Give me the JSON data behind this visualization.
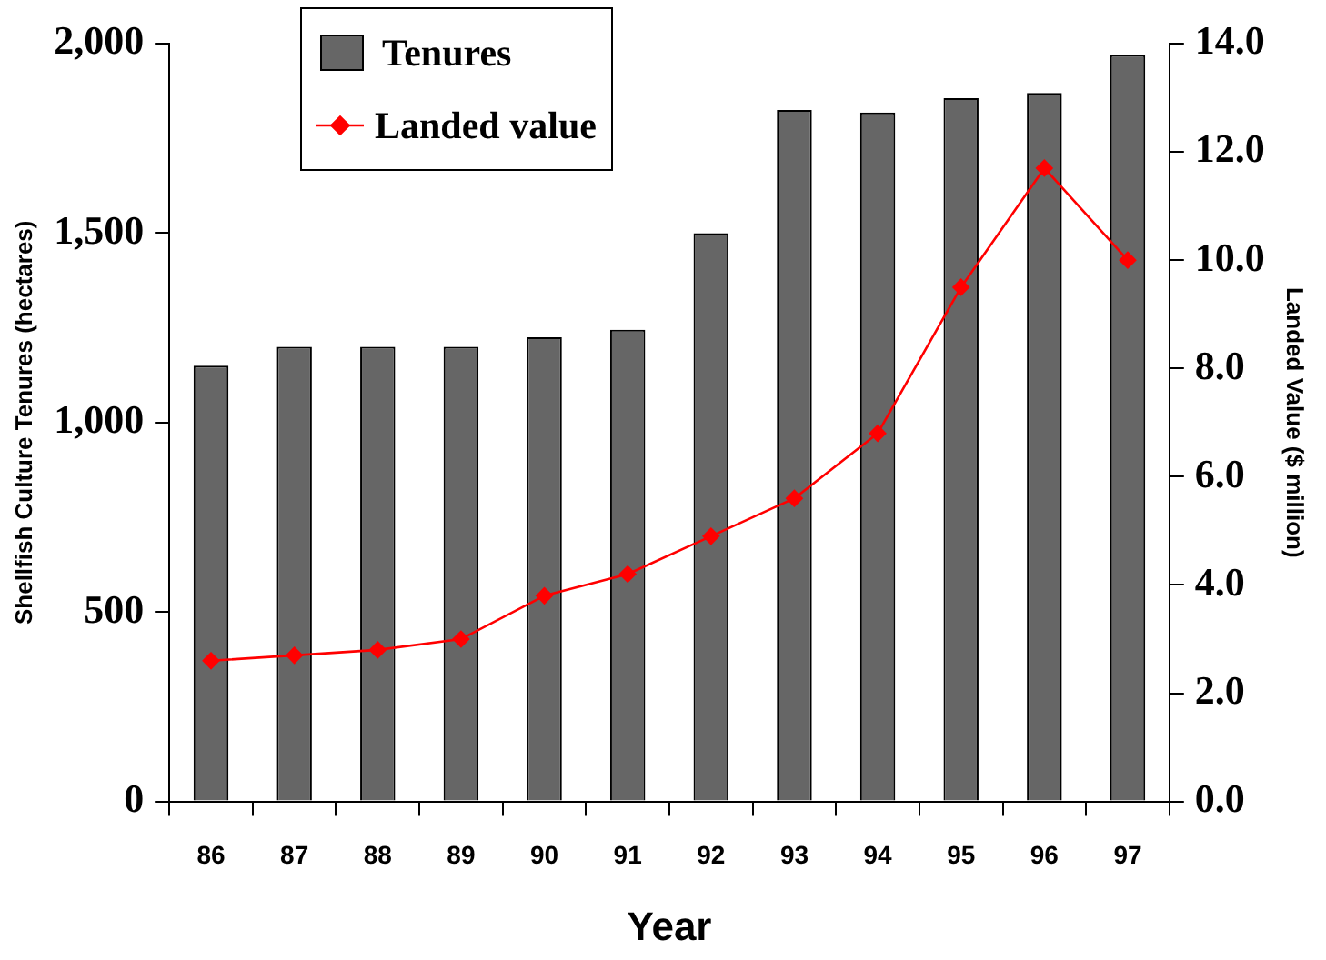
{
  "chart_data": {
    "type": "bar",
    "xlabel": "Year",
    "ylabel": "Shellfish Culture Tenures (hectares)",
    "y2label": "Landed Value ($ million)",
    "categories": [
      "86",
      "87",
      "88",
      "89",
      "90",
      "91",
      "92",
      "93",
      "94",
      "95",
      "96",
      "97"
    ],
    "series": [
      {
        "name": "Tenures",
        "color": "#666666",
        "values": [
          1150,
          1200,
          1200,
          1200,
          1225,
          1245,
          1500,
          1825,
          1818,
          1856,
          1870,
          1970
        ]
      },
      {
        "name": "Landed value",
        "type": "line",
        "axis": "y2",
        "color": "#ff0000",
        "marker": "diamond",
        "values": [
          2.6,
          2.7,
          2.8,
          3.0,
          3.8,
          4.2,
          4.9,
          5.6,
          6.8,
          9.5,
          11.7,
          10.0
        ]
      }
    ],
    "ylim": [
      0,
      2000
    ],
    "yticks": [
      0,
      {
        "value": 500,
        "label": "500"
      },
      {
        "value": 1000,
        "label": "1,000"
      },
      {
        "value": 1500,
        "label": "1,500"
      },
      {
        "value": 2000,
        "label": "2,000"
      }
    ],
    "y2lim": [
      0,
      14
    ],
    "y2ticks": [
      {
        "value": 0,
        "label": "0.0"
      },
      {
        "value": 2,
        "label": "2.0"
      },
      {
        "value": 4,
        "label": "4.0"
      },
      {
        "value": 6,
        "label": "6.0"
      },
      {
        "value": 8,
        "label": "8.0"
      },
      {
        "value": 10,
        "label": "10.0"
      },
      {
        "value": 12,
        "label": "12.0"
      },
      {
        "value": 14,
        "label": "14.0"
      }
    ],
    "grid": false,
    "legend": "top left"
  }
}
